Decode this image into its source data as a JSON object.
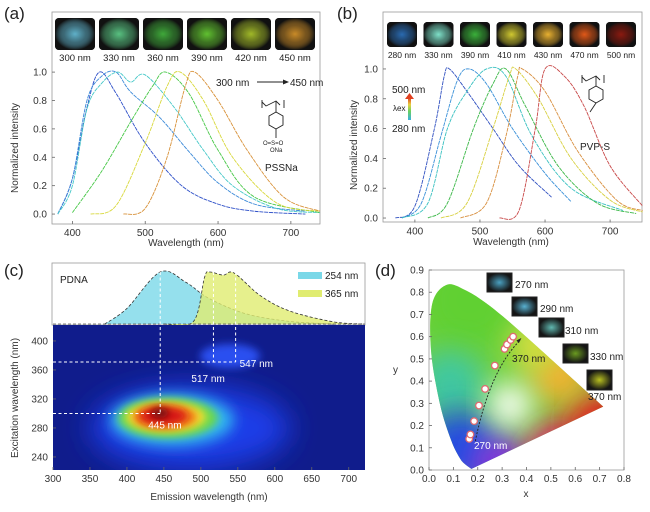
{
  "panel_labels": [
    "(a)",
    "(b)",
    "(c)",
    "(d)"
  ],
  "chart_data": [
    {
      "panel": "(a)",
      "type": "line",
      "xlabel": "Wavelength (nm)",
      "ylabel": "Normalized intensity",
      "xlim": [
        372,
        740
      ],
      "ylim": [
        -0.07,
        1.05
      ],
      "xticks": [
        400,
        500,
        600,
        700
      ],
      "yticks": [
        0,
        0.2,
        0.4,
        0.6,
        0.8,
        1.0
      ],
      "ytick_labels": [
        "0.0",
        "0.2",
        "0.4",
        "0.6",
        "0.8",
        "1.0"
      ],
      "grid": false,
      "images": [
        {
          "label": "300 nm",
          "color": "#5fb0c8"
        },
        {
          "label": "330 nm",
          "color": "#58c080"
        },
        {
          "label": "360 nm",
          "color": "#3fa83a"
        },
        {
          "label": "390 nm",
          "color": "#60c030"
        },
        {
          "label": "420 nm",
          "color": "#a0b828"
        },
        {
          "label": "450 nm",
          "color": "#c88a28"
        }
      ],
      "arrow_from": "300 nm",
      "arrow_to": "450 nm",
      "compound": "PSSNa",
      "series": [
        {
          "color": "#2d4fc8",
          "points": [
            [
              380,
              0
            ],
            [
              400,
              0.25
            ],
            [
              420,
              0.75
            ],
            [
              437,
              1.0
            ],
            [
              460,
              0.85
            ],
            [
              500,
              0.5
            ],
            [
              550,
              0.2
            ],
            [
              600,
              0.07
            ],
            [
              650,
              0.02
            ],
            [
              720,
              0.0
            ]
          ]
        },
        {
          "color": "#3c8ad8",
          "points": [
            [
              380,
              0
            ],
            [
              400,
              0.25
            ],
            [
              420,
              0.8
            ],
            [
              440,
              0.97
            ],
            [
              460,
              1.0
            ],
            [
              480,
              0.86
            ],
            [
              520,
              0.68
            ],
            [
              560,
              0.44
            ],
            [
              600,
              0.22
            ],
            [
              650,
              0.07
            ],
            [
              720,
              0.02
            ]
          ]
        },
        {
          "color": "#45c8c8",
          "points": [
            [
              380,
              0
            ],
            [
              400,
              0.2
            ],
            [
              420,
              0.74
            ],
            [
              440,
              0.92
            ],
            [
              462,
              1.0
            ],
            [
              480,
              0.93
            ],
            [
              500,
              0.98
            ],
            [
              540,
              0.75
            ],
            [
              580,
              0.45
            ],
            [
              620,
              0.2
            ],
            [
              680,
              0.04
            ],
            [
              740,
              0.01
            ]
          ]
        },
        {
          "color": "#48c848",
          "points": [
            [
              400,
              0.01
            ],
            [
              440,
              0.3
            ],
            [
              480,
              0.65
            ],
            [
              510,
              0.9
            ],
            [
              528,
              1.0
            ],
            [
              560,
              0.85
            ],
            [
              600,
              0.45
            ],
            [
              650,
              0.12
            ],
            [
              740,
              0.01
            ]
          ]
        },
        {
          "color": "#d8d83a",
          "points": [
            [
              425,
              0.0
            ],
            [
              460,
              0.06
            ],
            [
              500,
              0.5
            ],
            [
              530,
              0.9
            ],
            [
              548,
              1.0
            ],
            [
              580,
              0.8
            ],
            [
              620,
              0.4
            ],
            [
              680,
              0.08
            ],
            [
              740,
              0.02
            ]
          ]
        },
        {
          "color": "#d8923a",
          "points": [
            [
              470,
              0.0
            ],
            [
              500,
              0.04
            ],
            [
              530,
              0.4
            ],
            [
              555,
              0.9
            ],
            [
              568,
              1.0
            ],
            [
              600,
              0.8
            ],
            [
              640,
              0.45
            ],
            [
              690,
              0.12
            ],
            [
              740,
              0.02
            ]
          ]
        }
      ]
    },
    {
      "panel": "(b)",
      "type": "line",
      "xlabel": "Wavelength (nm)",
      "ylabel": "Normalized intensity",
      "xlim": [
        351,
        749
      ],
      "ylim": [
        -0.03,
        1.05
      ],
      "xticks": [
        400,
        500,
        600,
        700
      ],
      "yticks": [
        0,
        0.2,
        0.4,
        0.6,
        0.8,
        1.0
      ],
      "ytick_labels": [
        "0.0",
        "0.2",
        "0.4",
        "0.6",
        "0.8",
        "1.0"
      ],
      "grid": false,
      "images": [
        {
          "label": "280 nm",
          "color": "#2a6ab0"
        },
        {
          "label": "330 nm",
          "color": "#7ee0c8"
        },
        {
          "label": "390 nm",
          "color": "#3ab03a"
        },
        {
          "label": "410 nm",
          "color": "#d0c830"
        },
        {
          "label": "430 nm",
          "color": "#e8b030"
        },
        {
          "label": "470 nm",
          "color": "#e05818"
        },
        {
          "label": "500 nm",
          "color": "#8a1a10"
        }
      ],
      "lambda_scale": {
        "top": "500 nm",
        "symbol": "λex",
        "bottom": "280 nm"
      },
      "compound": "PVP-S",
      "series": [
        {
          "color": "#3050c0",
          "points": [
            [
              370,
              0
            ],
            [
              400,
              0.08
            ],
            [
              430,
              0.6
            ],
            [
              445,
              0.95
            ],
            [
              453,
              1.0
            ],
            [
              480,
              0.85
            ],
            [
              520,
              0.6
            ],
            [
              560,
              0.35
            ],
            [
              610,
              0.14
            ]
          ]
        },
        {
          "color": "#3a90d8",
          "points": [
            [
              380,
              0
            ],
            [
              410,
              0.1
            ],
            [
              440,
              0.55
            ],
            [
              465,
              0.92
            ],
            [
              483,
              1.0
            ],
            [
              510,
              0.9
            ],
            [
              550,
              0.6
            ],
            [
              600,
              0.3
            ],
            [
              640,
              0.11
            ]
          ]
        },
        {
          "color": "#38c0c0",
          "points": [
            [
              380,
              0
            ],
            [
              420,
              0.1
            ],
            [
              450,
              0.6
            ],
            [
              480,
              0.85
            ],
            [
              510,
              1.0
            ],
            [
              540,
              0.95
            ],
            [
              580,
              0.55
            ],
            [
              640,
              0.2
            ],
            [
              720,
              0.05
            ]
          ]
        },
        {
          "color": "#3cb848",
          "points": [
            [
              420,
              0
            ],
            [
              450,
              0.1
            ],
            [
              490,
              0.6
            ],
            [
              520,
              0.9
            ],
            [
              540,
              1.0
            ],
            [
              570,
              0.75
            ],
            [
              620,
              0.35
            ],
            [
              680,
              0.1
            ],
            [
              740,
              0.03
            ]
          ]
        },
        {
          "color": "#d8d040",
          "points": [
            [
              440,
              0
            ],
            [
              480,
              0.1
            ],
            [
              520,
              0.6
            ],
            [
              545,
              0.95
            ],
            [
              555,
              1.0
            ],
            [
              590,
              0.8
            ],
            [
              640,
              0.4
            ],
            [
              700,
              0.12
            ],
            [
              750,
              0.04
            ]
          ]
        },
        {
          "color": "#d89040",
          "points": [
            [
              470,
              0
            ],
            [
              510,
              0.1
            ],
            [
              540,
              0.55
            ],
            [
              558,
              0.95
            ],
            [
              565,
              1.0
            ],
            [
              600,
              0.85
            ],
            [
              650,
              0.45
            ],
            [
              710,
              0.12
            ],
            [
              750,
              0.05
            ]
          ]
        },
        {
          "color": "#c84848",
          "points": [
            [
              530,
              0
            ],
            [
              560,
              0.05
            ],
            [
              585,
              0.6
            ],
            [
              600,
              1.0
            ],
            [
              630,
              0.95
            ],
            [
              660,
              0.75
            ],
            [
              700,
              0.35
            ],
            [
              750,
              0.08
            ]
          ]
        }
      ]
    },
    {
      "panel": "(c)",
      "type": "heatmap",
      "xlabel": "Emission wavelength (nm)",
      "ylabel": "Excitation wavelength (nm)",
      "xlim": [
        300,
        722
      ],
      "ylim": [
        222,
        422
      ],
      "xticks": [
        300,
        350,
        400,
        450,
        500,
        550,
        600,
        650,
        700
      ],
      "yticks": [
        240,
        280,
        320,
        360,
        400
      ],
      "sample": "PDNA",
      "peaks": [
        {
          "label": "445 nm",
          "emission": 445,
          "excitation": 300
        },
        {
          "label": "517 nm",
          "emission": 517,
          "excitation": 371
        },
        {
          "label": "547 nm",
          "emission": 547,
          "excitation": 371
        }
      ],
      "spectra": [
        {
          "name": "254 nm",
          "color": "#7ad8e8",
          "points": [
            [
              370,
              0
            ],
            [
              400,
              0.3
            ],
            [
              445,
              1.0
            ],
            [
              480,
              0.8
            ],
            [
              510,
              0.5
            ],
            [
              560,
              0.2
            ],
            [
              620,
              0.05
            ],
            [
              680,
              0
            ]
          ]
        },
        {
          "name": "365 nm",
          "color": "#e0ec70",
          "points": [
            [
              450,
              0
            ],
            [
              490,
              0.05
            ],
            [
              505,
              0.9
            ],
            [
              512,
              1.0
            ],
            [
              530,
              0.94
            ],
            [
              545,
              0.98
            ],
            [
              580,
              0.55
            ],
            [
              620,
              0.25
            ],
            [
              680,
              0.04
            ],
            [
              720,
              0
            ]
          ]
        }
      ]
    },
    {
      "panel": "(d)",
      "type": "scatter",
      "xlabel": "x",
      "ylabel": "y",
      "xlim": [
        0,
        0.8
      ],
      "ylim": [
        0,
        0.9
      ],
      "xticks": [
        0,
        0.1,
        0.2,
        0.3,
        0.4,
        0.5,
        0.6,
        0.7,
        0.8
      ],
      "xtick_labels": [
        "0.0",
        "0.1",
        "0.2",
        "0.3",
        "0.4",
        "0.5",
        "0.6",
        "0.7",
        "0.8"
      ],
      "yticks": [
        0,
        0.1,
        0.2,
        0.3,
        0.4,
        0.5,
        0.6,
        0.7,
        0.8,
        0.9
      ],
      "ytick_labels": [
        "0.0",
        "0.1",
        "0.2",
        "0.3",
        "0.4",
        "0.5",
        "0.6",
        "0.7",
        "0.8",
        "0.9"
      ],
      "points": [
        [
          0.165,
          0.14
        ],
        [
          0.17,
          0.16
        ],
        [
          0.185,
          0.22
        ],
        [
          0.205,
          0.29
        ],
        [
          0.23,
          0.365
        ],
        [
          0.27,
          0.47
        ],
        [
          0.31,
          0.545
        ],
        [
          0.32,
          0.565
        ],
        [
          0.335,
          0.585
        ],
        [
          0.345,
          0.6
        ]
      ],
      "arrow_start_label": "270 nm",
      "arrow_end_label": "370 nm",
      "images": [
        {
          "label": "270 nm",
          "color": "#4aa0c0"
        },
        {
          "label": "290 nm",
          "color": "#58b0d0"
        },
        {
          "label": "310 nm",
          "color": "#60b8b0"
        },
        {
          "label": "330 nm",
          "color": "#6a9a20"
        },
        {
          "label": "370 nm",
          "color": "#b8c020"
        }
      ]
    }
  ]
}
